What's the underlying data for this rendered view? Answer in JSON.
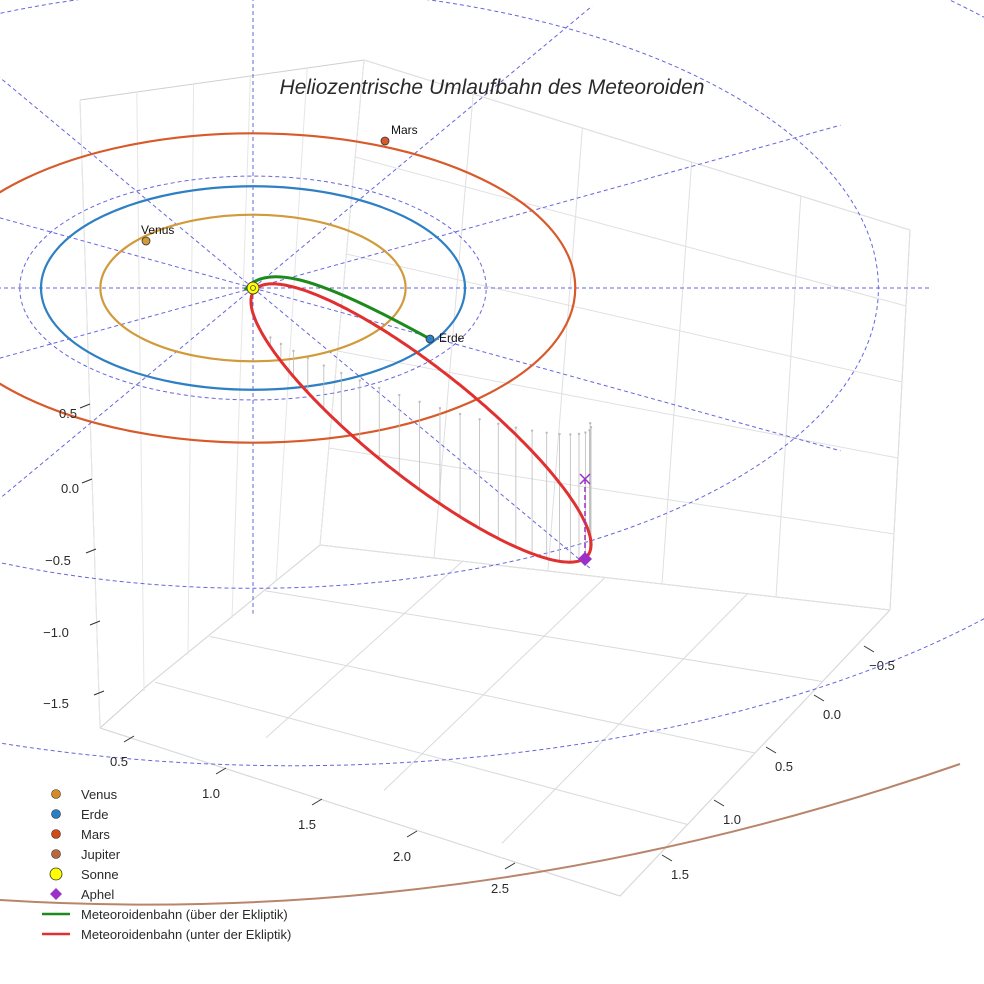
{
  "chart_data": {
    "type": "line3d",
    "title": "Heliozentrische Umlaufbahn des Meteoroiden",
    "axes": {
      "z_ticks": [
        "0.5",
        "0.0",
        "−0.5",
        "−1.0",
        "−1.5"
      ],
      "x_ticks": [
        "0.5",
        "1.0",
        "1.5",
        "2.0",
        "2.5"
      ],
      "y_ticks": [
        "−0.5",
        "0.0",
        "0.5",
        "1.0",
        "1.5"
      ],
      "grid": true
    },
    "sun": {
      "name": "Sonne",
      "x": 0,
      "y": 0,
      "z": 0
    },
    "planets": [
      {
        "name": "Venus",
        "orbit_radius_au": 0.72,
        "label": "Venus",
        "color": "#d19a3a"
      },
      {
        "name": "Erde",
        "orbit_radius_au": 1.0,
        "label": "Erde",
        "color": "#2e7fc4"
      },
      {
        "name": "Mars",
        "orbit_radius_au": 1.52,
        "label": "Mars",
        "color": "#d85a2a"
      },
      {
        "name": "Jupiter",
        "orbit_radius_au": 5.2,
        "color": "#b8856a"
      }
    ],
    "meteoroid_orbit": {
      "perihelion_au": 0.02,
      "aphelion_au": 2.3,
      "segments": [
        {
          "name": "Meteoroidenbahn (über der Ekliptik)",
          "color": "#1e8a1e"
        },
        {
          "name": "Meteoroidenbahn (unter der Ekliptik)",
          "color": "#e03030"
        }
      ]
    },
    "aphel": {
      "name": "Aphel",
      "color": "#9b30c8"
    },
    "legend": {
      "position": "bottom-left",
      "items": [
        {
          "label": "Venus",
          "marker": "dot",
          "color": "#d58a2a"
        },
        {
          "label": "Erde",
          "marker": "dot",
          "color": "#2a7fc4"
        },
        {
          "label": "Mars",
          "marker": "dot",
          "color": "#d04a1a"
        },
        {
          "label": "Jupiter",
          "marker": "dot",
          "color": "#b8683a"
        },
        {
          "label": "Sonne",
          "marker": "sun",
          "color": "#ffff00"
        },
        {
          "label": "Aphel",
          "marker": "diamond",
          "color": "#9b30c8"
        },
        {
          "label": "Meteoroidenbahn (über der Ekliptik)",
          "marker": "line",
          "color": "#1e8a1e"
        },
        {
          "label": "Meteoroidenbahn (unter der Ekliptik)",
          "marker": "line",
          "color": "#e03030"
        }
      ]
    }
  }
}
